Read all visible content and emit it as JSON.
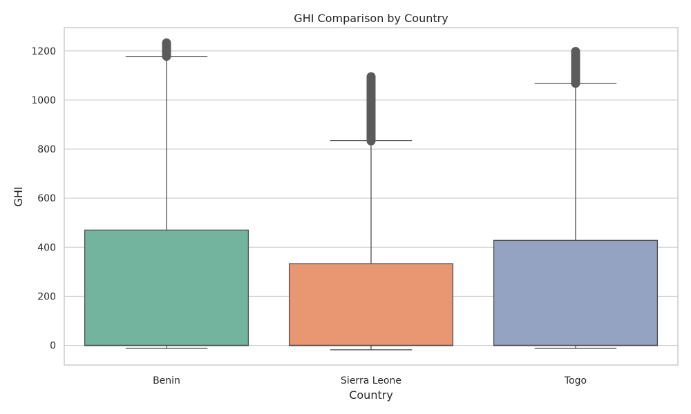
{
  "chart_data": {
    "type": "box",
    "title": "GHI Comparison by Country",
    "xlabel": "Country",
    "ylabel": "GHI",
    "ylim": [
      -80,
      1295
    ],
    "yticks": [
      0,
      200,
      400,
      600,
      800,
      1000,
      1200
    ],
    "grid": true,
    "categories": [
      "Benin",
      "Sierra Leone",
      "Togo"
    ],
    "boxes": [
      {
        "category": "Benin",
        "color": "#73b49f",
        "whisker_low": -12,
        "q1": -1,
        "median": 0,
        "q3": 470,
        "whisker_high": 1178,
        "outlier_range": [
          1178,
          1233
        ]
      },
      {
        "category": "Sierra Leone",
        "color": "#e99673",
        "whisker_low": -18,
        "q1": -1,
        "median": 0,
        "q3": 333,
        "whisker_high": 835,
        "outlier_range": [
          833,
          1095
        ]
      },
      {
        "category": "Togo",
        "color": "#94a3c1",
        "whisker_low": -12,
        "q1": -1,
        "median": 0,
        "q3": 428,
        "whisker_high": 1068,
        "outlier_range": [
          1068,
          1198
        ]
      }
    ]
  }
}
